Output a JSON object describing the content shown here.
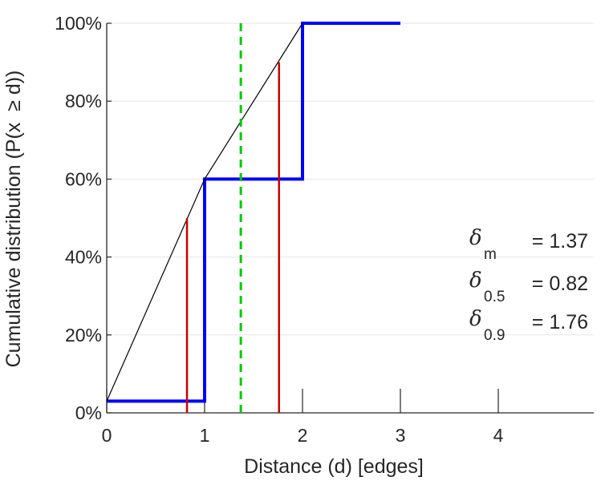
{
  "chart_data": {
    "type": "line",
    "xlabel": "Distance (d) [edges]",
    "ylabel": "Cumulative distribution (P(x  ≥ d))",
    "xlim": [
      0,
      5
    ],
    "ylim": [
      0,
      1
    ],
    "x_ticks": [
      {
        "value": 0,
        "label": "0"
      },
      {
        "value": 1,
        "label": "1"
      },
      {
        "value": 2,
        "label": "2"
      },
      {
        "value": 3,
        "label": "3"
      },
      {
        "value": 4,
        "label": "4"
      }
    ],
    "y_ticks": [
      {
        "value": 0,
        "label": "0%"
      },
      {
        "value": 0.2,
        "label": "20%"
      },
      {
        "value": 0.4,
        "label": "40%"
      },
      {
        "value": 0.6,
        "label": "60%"
      },
      {
        "value": 0.8,
        "label": "80%"
      },
      {
        "value": 1.0,
        "label": "100%"
      }
    ],
    "grid": "horizontal",
    "series": [
      {
        "kind": "step",
        "color": "#0000ff",
        "points": [
          [
            0,
            0.03
          ],
          [
            1,
            0.03
          ],
          [
            1,
            0.6
          ],
          [
            2,
            0.6
          ],
          [
            2,
            1.0
          ],
          [
            3,
            1.0
          ]
        ]
      },
      {
        "kind": "interpolation",
        "color": "#000000",
        "points": [
          [
            0,
            0.03
          ],
          [
            1,
            0.6
          ],
          [
            2,
            1.0
          ]
        ]
      }
    ],
    "vertical_markers": [
      {
        "x": 0.82,
        "y_top": 0.5,
        "color": "#cc0000",
        "style": "solid"
      },
      {
        "x": 1.76,
        "y_top": 0.9,
        "color": "#cc0000",
        "style": "solid"
      },
      {
        "x": 1.37,
        "y_top": 1.0,
        "color": "#00cc00",
        "style": "dashed"
      }
    ],
    "annotations": [
      {
        "symbol": "δ",
        "sub": "m",
        "text": "= 1.37"
      },
      {
        "symbol": "δ",
        "sub": "0.5",
        "text": "= 0.82"
      },
      {
        "symbol": "δ",
        "sub": "0.9",
        "text": "= 1.76"
      }
    ]
  }
}
